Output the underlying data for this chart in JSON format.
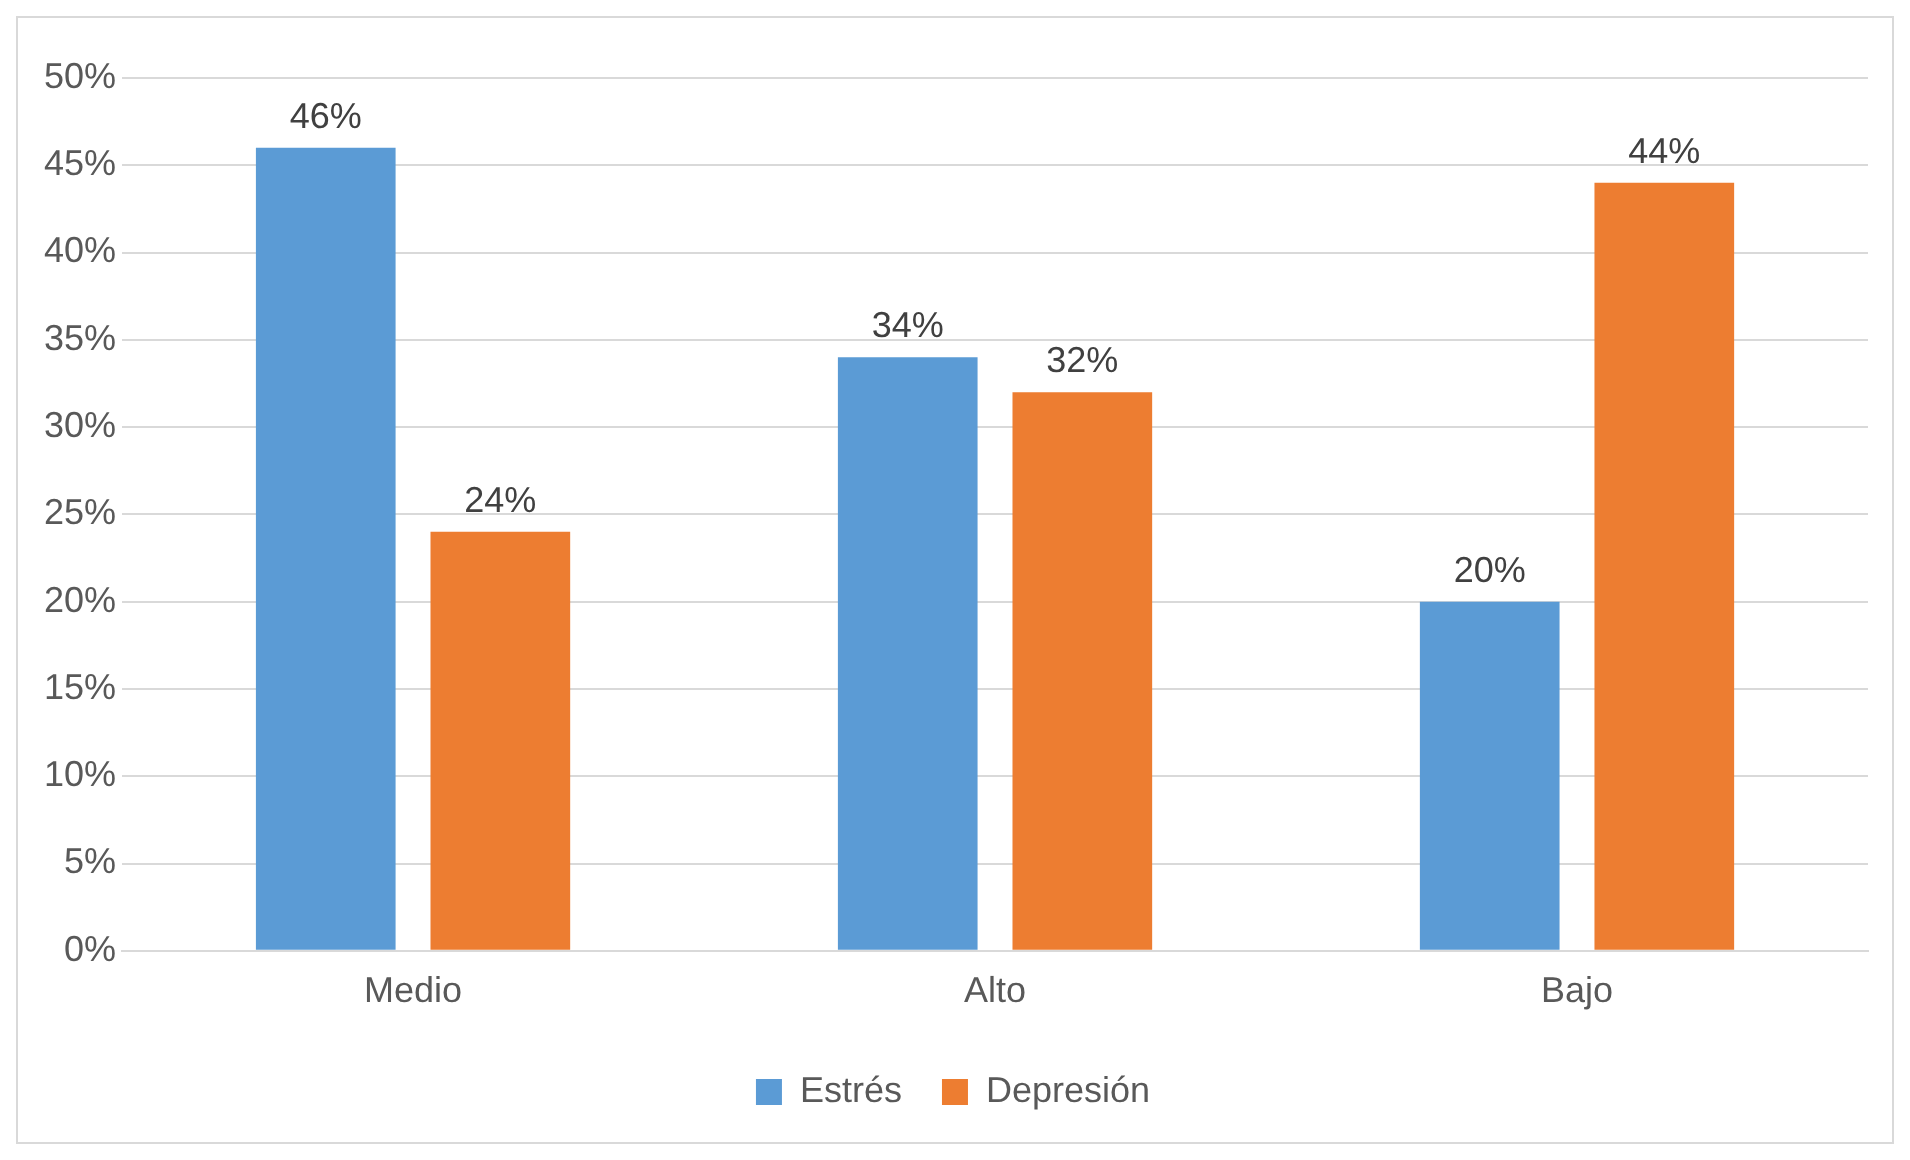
{
  "chart_data": {
    "type": "bar",
    "categories": [
      "Medio",
      "Alto",
      "Bajo"
    ],
    "series": [
      {
        "name": "Estrés",
        "color": "#5b9bd5",
        "values": [
          46,
          34,
          20
        ],
        "value_labels": [
          "46%",
          "34%",
          "20%"
        ]
      },
      {
        "name": "Depresión",
        "color": "#ed7d31",
        "values": [
          24,
          32,
          44
        ],
        "value_labels": [
          "24%",
          "32%",
          "44%"
        ]
      }
    ],
    "ylim": [
      0,
      50
    ],
    "yticks": [
      {
        "value": 0,
        "label": "0%"
      },
      {
        "value": 5,
        "label": "5%"
      },
      {
        "value": 10,
        "label": "10%"
      },
      {
        "value": 15,
        "label": "15%"
      },
      {
        "value": 20,
        "label": "20%"
      },
      {
        "value": 25,
        "label": "25%"
      },
      {
        "value": 30,
        "label": "30%"
      },
      {
        "value": 35,
        "label": "35%"
      },
      {
        "value": 40,
        "label": "40%"
      },
      {
        "value": 45,
        "label": "45%"
      },
      {
        "value": 50,
        "label": "50%"
      }
    ],
    "grid": "y",
    "legend": "bottom"
  }
}
